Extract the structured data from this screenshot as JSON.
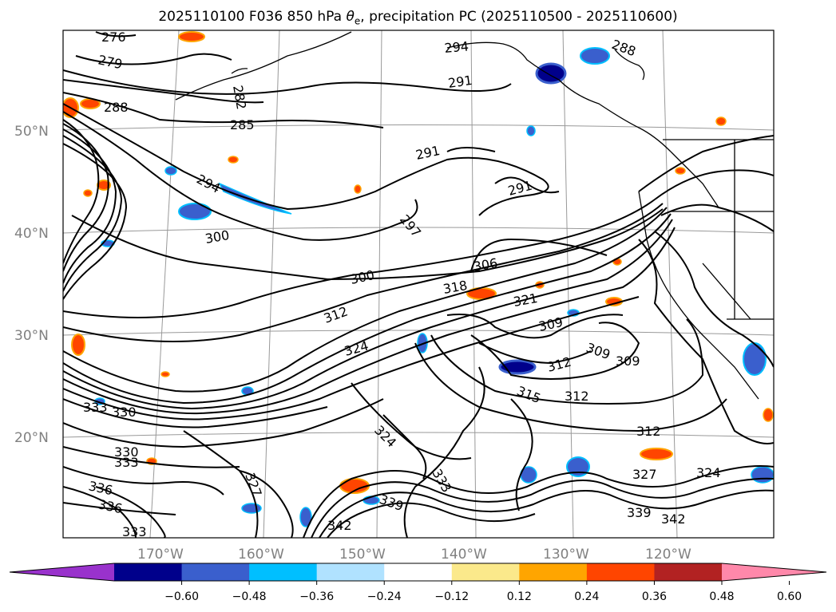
{
  "title": {
    "prefix": "2025110100 F036 850 hPa ",
    "symbol": "θ",
    "subscript": "e",
    "suffix": ", precipitation PC (2025110500 - 2025110600)"
  },
  "map": {
    "projection": "Lambert conformal",
    "region": "North Pacific",
    "lat_labels": [
      "50°N",
      "40°N",
      "30°N",
      "20°N"
    ],
    "lon_labels": [
      "170°W",
      "160°W",
      "150°W",
      "140°W",
      "130°W",
      "120°W"
    ],
    "contour_field": "850 hPa equivalent potential temperature",
    "contour_labels": [
      "276",
      "279",
      "282",
      "285",
      "288",
      "291",
      "294",
      "297",
      "300",
      "306",
      "309",
      "312",
      "315",
      "318",
      "321",
      "324",
      "327",
      "330",
      "333",
      "336",
      "339",
      "342"
    ],
    "shading_field": "precipitation PC"
  },
  "colorbar": {
    "ticks": [
      "−0.60",
      "−0.48",
      "−0.36",
      "−0.24",
      "−0.12",
      "0.12",
      "0.24",
      "0.36",
      "0.48",
      "0.60"
    ],
    "colors": [
      "#9932cc",
      "#00008b",
      "#3a5fcd",
      "#00bfff",
      "#b0e2ff",
      "#ffffff",
      "#fbe98b",
      "#ffa500",
      "#ff4500",
      "#b22222",
      "#ff88aa"
    ],
    "extend": "both"
  }
}
